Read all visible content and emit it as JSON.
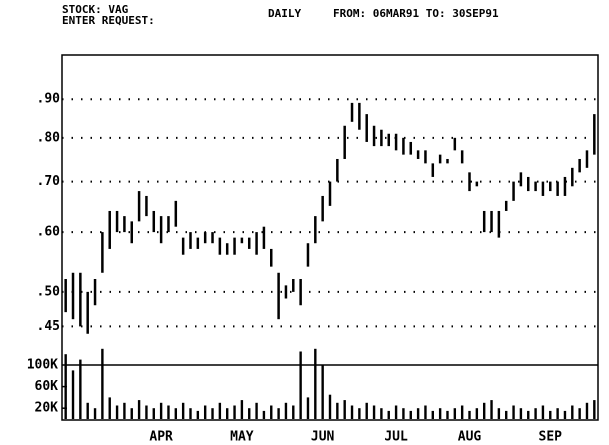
{
  "chart_data": {
    "type": "hilo",
    "stock": "STOCK: VAG",
    "prompt": "ENTER REQUEST:",
    "title": "DAILY",
    "range": "FROM: 06MAR91 TO: 30SEP91",
    "log_scale": true,
    "grid": true,
    "color": "#000000",
    "categories": [
      null,
      null,
      null,
      null,
      null,
      null,
      null,
      null,
      null,
      null,
      null,
      null,
      null,
      "APR",
      null,
      null,
      null,
      null,
      null,
      null,
      null,
      null,
      null,
      null,
      "MAY",
      null,
      null,
      null,
      null,
      null,
      null,
      null,
      null,
      null,
      null,
      "JUN",
      null,
      null,
      null,
      null,
      null,
      null,
      null,
      null,
      null,
      "JUL",
      null,
      null,
      null,
      null,
      null,
      null,
      null,
      null,
      null,
      "AUG",
      null,
      null,
      null,
      null,
      null,
      null,
      null,
      null,
      null,
      null,
      "SEP",
      null,
      null,
      null,
      null,
      null,
      null
    ],
    "high": [
      0.52,
      0.53,
      0.53,
      0.5,
      0.52,
      0.6,
      0.64,
      0.64,
      0.63,
      0.62,
      0.68,
      0.67,
      0.64,
      0.63,
      0.63,
      0.66,
      0.59,
      0.6,
      0.59,
      0.6,
      0.6,
      0.59,
      0.58,
      0.59,
      0.59,
      0.59,
      0.6,
      0.61,
      0.57,
      0.53,
      0.51,
      0.52,
      0.52,
      0.58,
      0.63,
      0.67,
      0.7,
      0.75,
      0.83,
      0.89,
      0.89,
      0.86,
      0.83,
      0.82,
      0.81,
      0.81,
      0.8,
      0.79,
      0.77,
      0.77,
      0.74,
      0.76,
      0.75,
      0.8,
      0.77,
      0.72,
      0.7,
      0.64,
      0.64,
      0.64,
      0.66,
      0.7,
      0.72,
      0.71,
      0.7,
      0.7,
      0.7,
      0.7,
      0.71,
      0.73,
      0.75,
      0.77,
      0.86
    ],
    "low": [
      0.47,
      0.46,
      0.45,
      0.44,
      0.48,
      0.53,
      0.57,
      0.6,
      0.6,
      0.58,
      0.62,
      0.63,
      0.6,
      0.58,
      0.6,
      0.61,
      0.56,
      0.57,
      0.57,
      0.58,
      0.58,
      0.56,
      0.56,
      0.56,
      0.58,
      0.57,
      0.56,
      0.57,
      0.54,
      0.46,
      0.49,
      0.5,
      0.48,
      0.54,
      0.58,
      0.62,
      0.65,
      0.7,
      0.75,
      0.84,
      0.82,
      0.79,
      0.78,
      0.78,
      0.78,
      0.77,
      0.76,
      0.76,
      0.75,
      0.74,
      0.71,
      0.74,
      0.74,
      0.77,
      0.74,
      0.68,
      0.69,
      0.6,
      0.6,
      0.59,
      0.64,
      0.66,
      0.69,
      0.68,
      0.68,
      0.67,
      0.68,
      0.67,
      0.67,
      0.69,
      0.72,
      0.73,
      0.76
    ],
    "volume": [
      120000,
      90000,
      110000,
      30000,
      20000,
      130000,
      40000,
      25000,
      30000,
      20000,
      35000,
      25000,
      20000,
      30000,
      25000,
      20000,
      30000,
      20000,
      15000,
      25000,
      20000,
      30000,
      20000,
      25000,
      35000,
      20000,
      30000,
      15000,
      25000,
      20000,
      30000,
      25000,
      125000,
      40000,
      130000,
      100000,
      45000,
      30000,
      35000,
      25000,
      20000,
      30000,
      25000,
      20000,
      15000,
      25000,
      20000,
      15000,
      20000,
      25000,
      15000,
      20000,
      15000,
      20000,
      25000,
      15000,
      20000,
      30000,
      35000,
      20000,
      15000,
      25000,
      20000,
      15000,
      20000,
      25000,
      15000,
      20000,
      15000,
      25000,
      20000,
      30000,
      35000
    ],
    "ylim": [
      0.4,
      1.03
    ],
    "yticks": [
      {
        "value": 0.45,
        "label": ".45"
      },
      {
        "value": 0.5,
        "label": ".50"
      },
      {
        "value": 0.6,
        "label": ".60"
      },
      {
        "value": 0.7,
        "label": ".70"
      },
      {
        "value": 0.8,
        "label": ".80"
      },
      {
        "value": 0.9,
        "label": ".90"
      }
    ],
    "y2lim": [
      0,
      100000
    ],
    "y2ticks": [
      {
        "value": 20000,
        "label": "20K"
      },
      {
        "value": 60000,
        "label": "60K"
      },
      {
        "value": 100000,
        "label": "100K"
      }
    ]
  }
}
